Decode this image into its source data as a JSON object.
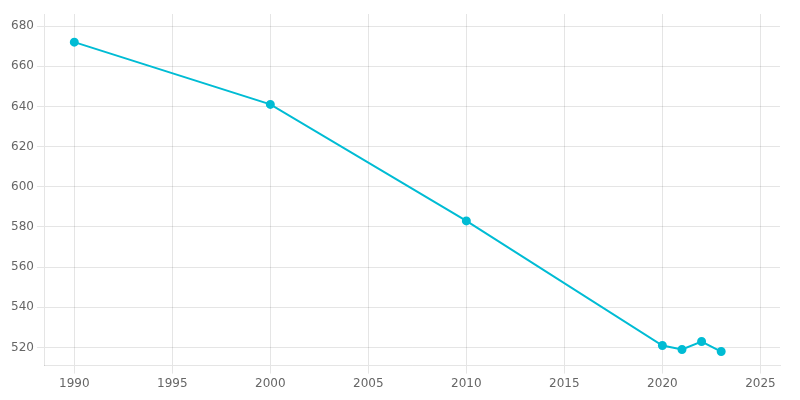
{
  "chart_data": {
    "type": "line",
    "x": [
      1990,
      2000,
      2010,
      2020,
      2021,
      2022,
      2023
    ],
    "values": [
      672,
      641,
      583,
      521,
      519,
      523,
      518
    ],
    "color": "#00bcd4",
    "marker": "circle",
    "xlim": [
      1988.5,
      2026
    ],
    "ylim": [
      511,
      686
    ],
    "xticks": [
      1990,
      1995,
      2000,
      2005,
      2010,
      2015,
      2020,
      2025
    ],
    "yticks": [
      520,
      540,
      560,
      580,
      600,
      620,
      640,
      660,
      680
    ],
    "grid": true
  }
}
